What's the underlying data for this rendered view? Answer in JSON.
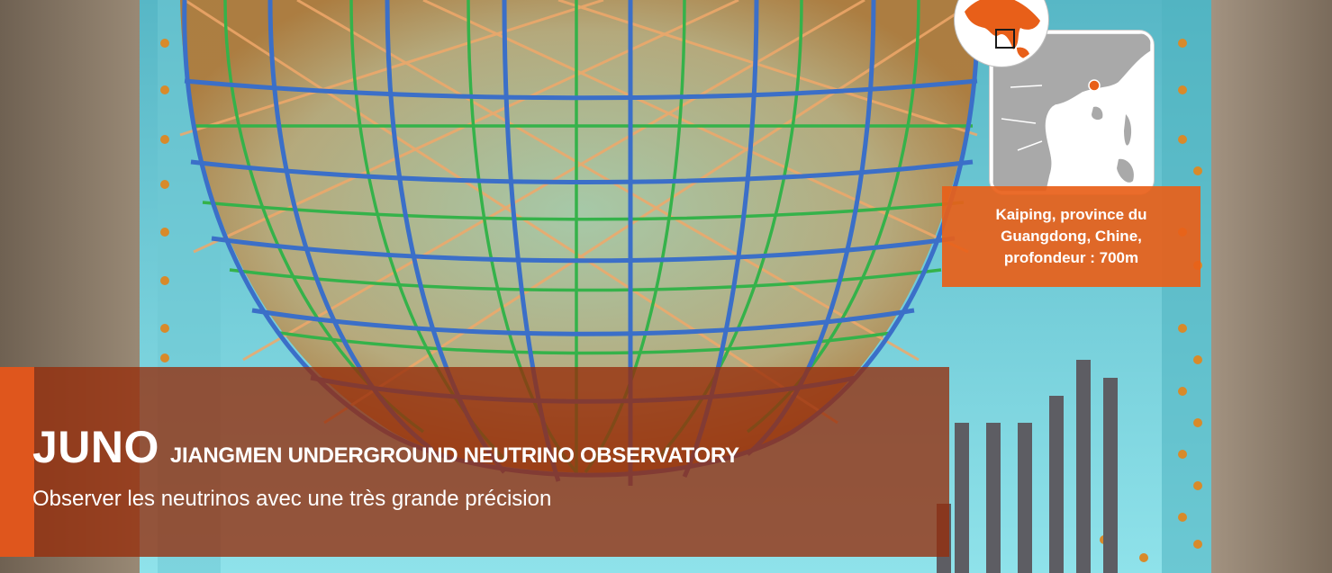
{
  "banner": {
    "acronym": "JUNO",
    "full_name": "JIANGMEN UNDERGROUND NEUTRINO OBSERVATORY",
    "subtitle": "Observer les neutrinos avec une très grande précision"
  },
  "location": {
    "label": "Kaiping, province du Guangdong, Chine, profondeur : 700m"
  },
  "colors": {
    "banner_bg": "#962d0a",
    "accent_orange": "#e85f19",
    "map_land": "#a9a9a9",
    "marker": "#e85f19",
    "pool_cyan": "#7fdbe3",
    "rock": "#8d7b66"
  }
}
